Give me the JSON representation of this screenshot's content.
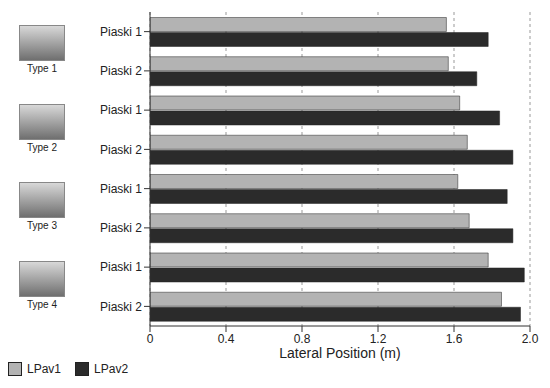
{
  "chart_data": {
    "type": "bar",
    "orientation": "horizontal",
    "x_label": "Lateral Position (m)",
    "categories": [
      "Piaski 1",
      "Piaski 2",
      "Piaski 1",
      "Piaski 2",
      "Piaski 1",
      "Piaski 2",
      "Piaski 1",
      "Piaski 2"
    ],
    "groups": [
      "Type 1",
      "Type 2",
      "Type 3",
      "Type 4"
    ],
    "series": [
      {
        "name": "LPav1",
        "color": "#b3b3b3",
        "values": [
          1.56,
          1.57,
          1.63,
          1.67,
          1.62,
          1.68,
          1.78,
          1.85
        ]
      },
      {
        "name": "LPav2",
        "color": "#2b2b2b",
        "values": [
          1.78,
          1.72,
          1.84,
          1.91,
          1.88,
          1.91,
          1.97,
          1.95
        ]
      }
    ],
    "xlim": [
      0,
      2
    ],
    "xticks": [
      0,
      0.4,
      0.8,
      1.2,
      1.6,
      {
        "value": 2,
        "label": "2.0"
      }
    ],
    "grid": true,
    "legend": "bottom left"
  }
}
